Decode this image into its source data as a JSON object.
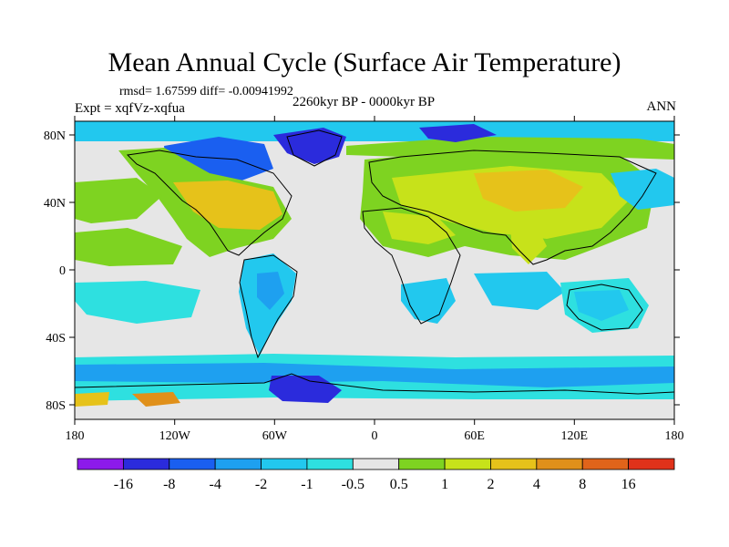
{
  "title": "Mean Annual Cycle (Surface Air Temperature)",
  "stats": "rmsd= 1.67599 diff= -0.00941992",
  "experiment": "Expt = xqfVz-xqfua",
  "period": "2260kyr BP - 0000kyr BP",
  "season": "ANN",
  "lat_labels": [
    "80N",
    "40N",
    "0",
    "40S",
    "80S"
  ],
  "lon_labels": [
    "180",
    "120W",
    "60W",
    "0",
    "60E",
    "120E",
    "180"
  ],
  "colorbar": {
    "levels": [
      "-16",
      "-8",
      "-4",
      "-2",
      "-1",
      "-0.5",
      "0.5",
      "1",
      "2",
      "4",
      "8",
      "16"
    ],
    "colors": [
      "#8c1aeb",
      "#2b2bdc",
      "#1a5ff0",
      "#1ea0f0",
      "#22c8ee",
      "#2ee0e0",
      "#e6e6e6",
      "#7ed321",
      "#c7e21a",
      "#e6c21a",
      "#e0901a",
      "#e0641a",
      "#e0321a"
    ]
  },
  "palette": {
    "background": "#e6e6e6",
    "coastline": "#000000"
  }
}
